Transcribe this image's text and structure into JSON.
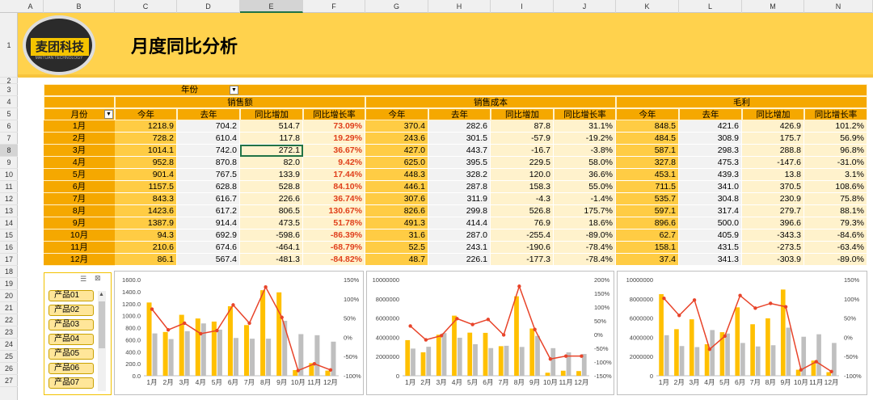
{
  "columns": [
    "A",
    "B",
    "C",
    "D",
    "E",
    "F",
    "G",
    "H",
    "I",
    "J",
    "K",
    "L",
    "M",
    "N"
  ],
  "rows_index": [
    "1",
    "2",
    "3",
    "4",
    "5",
    "6",
    "7",
    "8",
    "9",
    "10",
    "11",
    "12",
    "13",
    "14",
    "15",
    "16",
    "17",
    "18",
    "19",
    "20",
    "21",
    "22",
    "23",
    "24",
    "25",
    "26",
    "27"
  ],
  "header": {
    "title": "月度同比分析",
    "logo_text": "麦团科技",
    "logo_sub": "MAITUAN TECHNOLOGY"
  },
  "filter": {
    "label": "年份"
  },
  "groups": [
    "销售额",
    "销售成本",
    "毛利"
  ],
  "month_col_label": "月份",
  "subheaders": [
    "今年",
    "去年",
    "同比增加",
    "同比增长率"
  ],
  "rows": [
    {
      "m": "1月",
      "v": [
        "1218.9",
        "704.2",
        "514.7",
        "73.09%",
        "370.4",
        "282.6",
        "87.8",
        "31.1%",
        "848.5",
        "421.6",
        "426.9",
        "101.2%"
      ]
    },
    {
      "m": "2月",
      "v": [
        "728.2",
        "610.4",
        "117.8",
        "19.29%",
        "243.6",
        "301.5",
        "-57.9",
        "-19.2%",
        "484.5",
        "308.9",
        "175.7",
        "56.9%"
      ]
    },
    {
      "m": "3月",
      "v": [
        "1014.1",
        "742.0",
        "272.1",
        "36.67%",
        "427.0",
        "443.7",
        "-16.7",
        "-3.8%",
        "587.1",
        "298.3",
        "288.8",
        "96.8%"
      ]
    },
    {
      "m": "4月",
      "v": [
        "952.8",
        "870.8",
        "82.0",
        "9.42%",
        "625.0",
        "395.5",
        "229.5",
        "58.0%",
        "327.8",
        "475.3",
        "-147.6",
        "-31.0%"
      ]
    },
    {
      "m": "5月",
      "v": [
        "901.4",
        "767.5",
        "133.9",
        "17.44%",
        "448.3",
        "328.2",
        "120.0",
        "36.6%",
        "453.1",
        "439.3",
        "13.8",
        "3.1%"
      ]
    },
    {
      "m": "6月",
      "v": [
        "1157.5",
        "628.8",
        "528.8",
        "84.10%",
        "446.1",
        "287.8",
        "158.3",
        "55.0%",
        "711.5",
        "341.0",
        "370.5",
        "108.6%"
      ]
    },
    {
      "m": "7月",
      "v": [
        "843.3",
        "616.7",
        "226.6",
        "36.74%",
        "307.6",
        "311.9",
        "-4.3",
        "-1.4%",
        "535.7",
        "304.8",
        "230.9",
        "75.8%"
      ]
    },
    {
      "m": "8月",
      "v": [
        "1423.6",
        "617.2",
        "806.5",
        "130.67%",
        "826.6",
        "299.8",
        "526.8",
        "175.7%",
        "597.1",
        "317.4",
        "279.7",
        "88.1%"
      ]
    },
    {
      "m": "9月",
      "v": [
        "1387.9",
        "914.4",
        "473.5",
        "51.78%",
        "491.3",
        "414.4",
        "76.9",
        "18.6%",
        "896.6",
        "500.0",
        "396.6",
        "79.3%"
      ]
    },
    {
      "m": "10月",
      "v": [
        "94.3",
        "692.9",
        "-598.6",
        "-86.39%",
        "31.6",
        "287.0",
        "-255.4",
        "-89.0%",
        "62.7",
        "405.9",
        "-343.3",
        "-84.6%"
      ]
    },
    {
      "m": "11月",
      "v": [
        "210.6",
        "674.6",
        "-464.1",
        "-68.79%",
        "52.5",
        "243.1",
        "-190.6",
        "-78.4%",
        "158.1",
        "431.5",
        "-273.5",
        "-63.4%"
      ]
    },
    {
      "m": "12月",
      "v": [
        "86.1",
        "567.4",
        "-481.3",
        "-84.82%",
        "48.7",
        "226.1",
        "-177.3",
        "-78.4%",
        "37.4",
        "341.3",
        "-303.9",
        "-89.0%"
      ]
    }
  ],
  "slicer": {
    "items": [
      "产品01",
      "产品02",
      "产品03",
      "产品04",
      "产品05",
      "产品06",
      "产品07"
    ]
  },
  "chart_data": [
    {
      "type": "bar",
      "categories": [
        "1月",
        "2月",
        "3月",
        "4月",
        "5月",
        "6月",
        "7月",
        "8月",
        "9月",
        "10月",
        "11月",
        "12月"
      ],
      "series": [
        {
          "values": [
            1218.9,
            728.2,
            1014.1,
            952.8,
            901.4,
            1157.5,
            843.3,
            1423.6,
            1387.9,
            94.3,
            210.6,
            86.1
          ]
        },
        {
          "values": [
            704.2,
            610.4,
            742.0,
            870.8,
            767.5,
            628.8,
            616.7,
            617.2,
            914.4,
            692.9,
            674.6,
            567.4
          ]
        },
        {
          "values": [
            73.09,
            19.29,
            36.67,
            9.42,
            17.44,
            84.1,
            36.74,
            130.67,
            51.78,
            -86.39,
            -68.79,
            -84.82
          ]
        }
      ],
      "ylim": [
        0,
        1600
      ],
      "yticks": [
        "0.0",
        "200.0",
        "400.0",
        "600.0",
        "800.0",
        "1000.0",
        "1200.0",
        "1400.0",
        "1600.0"
      ],
      "y2lim": [
        -100,
        150
      ],
      "y2ticks": [
        "-100%",
        "-50%",
        "0%",
        "50%",
        "100%",
        "150%"
      ],
      "bar_colors": [
        "#ffc000",
        "#bfbfbf"
      ],
      "line_color": "#e8442a"
    },
    {
      "type": "bar",
      "categories": [
        "1月",
        "2月",
        "3月",
        "4月",
        "5月",
        "6月",
        "7月",
        "8月",
        "9月",
        "10月",
        "11月",
        "12月"
      ],
      "series": [
        {
          "values": [
            3704000,
            2436000,
            4270000,
            6250000,
            4483000,
            4461000,
            3076000,
            8266000,
            4913000,
            316000,
            525000,
            487000
          ]
        },
        {
          "values": [
            2826000,
            3015000,
            4437000,
            3955000,
            3282000,
            2878000,
            3119000,
            2998000,
            4144000,
            2870000,
            2431000,
            2261000
          ]
        },
        {
          "values": [
            31.1,
            -19.2,
            -3.8,
            58.0,
            36.6,
            55.0,
            -1.4,
            175.7,
            18.6,
            -89.0,
            -78.4,
            -78.4
          ]
        }
      ],
      "ylim": [
        0,
        10000000
      ],
      "yticks": [
        "0",
        "2000000",
        "4000000",
        "6000000",
        "8000000",
        "10000000"
      ],
      "y2lim": [
        -150,
        200
      ],
      "y2ticks": [
        "-150%",
        "-100%",
        "-50%",
        "0%",
        "50%",
        "100%",
        "150%",
        "200%"
      ],
      "bar_colors": [
        "#ffc000",
        "#bfbfbf"
      ],
      "line_color": "#e8442a"
    },
    {
      "type": "bar",
      "categories": [
        "1月",
        "2月",
        "3月",
        "4月",
        "5月",
        "6月",
        "7月",
        "8月",
        "9月",
        "10月",
        "11月",
        "12月"
      ],
      "series": [
        {
          "values": [
            8485000,
            4845000,
            5871000,
            3278000,
            4531000,
            7115000,
            5357000,
            5971000,
            8966000,
            627000,
            1581000,
            374000
          ]
        },
        {
          "values": [
            4216000,
            3089000,
            2983000,
            4753000,
            4393000,
            3410000,
            3048000,
            3174000,
            5000000,
            4059000,
            4315000,
            3413000
          ]
        },
        {
          "values": [
            101.2,
            56.9,
            96.8,
            -31.0,
            3.1,
            108.6,
            75.8,
            88.1,
            79.3,
            -84.6,
            -63.4,
            -89.0
          ]
        }
      ],
      "ylim": [
        0,
        10000000
      ],
      "yticks": [
        "0",
        "2000000",
        "4000000",
        "6000000",
        "8000000",
        "10000000"
      ],
      "y2lim": [
        -100,
        150
      ],
      "y2ticks": [
        "-100%",
        "-50%",
        "0%",
        "50%",
        "100%",
        "150%"
      ],
      "bar_colors": [
        "#ffc000",
        "#bfbfbf"
      ],
      "line_color": "#e8442a"
    }
  ]
}
